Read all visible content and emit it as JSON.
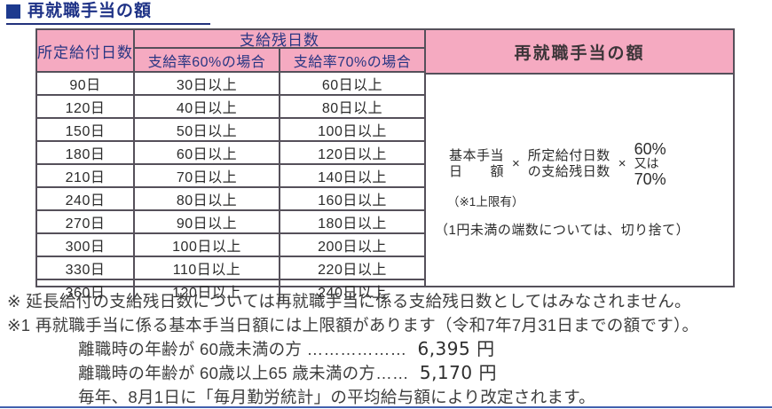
{
  "title": {
    "text": "再就職手当の額"
  },
  "table": {
    "header": {
      "col_prescribed_days": "所定給付日数",
      "col_remaining_days": "支給残日数",
      "col_rate60": "支給率60%の場合",
      "col_rate70": "支給率70%の場合",
      "col_allowance": "再就職手当の額"
    },
    "rows": [
      {
        "days": "90日",
        "r60": "30日以上",
        "r70": "60日以上"
      },
      {
        "days": "120日",
        "r60": "40日以上",
        "r70": "80日以上"
      },
      {
        "days": "150日",
        "r60": "50日以上",
        "r70": "100日以上"
      },
      {
        "days": "180日",
        "r60": "60日以上",
        "r70": "120日以上"
      },
      {
        "days": "210日",
        "r60": "70日以上",
        "r70": "140日以上"
      },
      {
        "days": "240日",
        "r60": "80日以上",
        "r70": "160日以上"
      },
      {
        "days": "270日",
        "r60": "90日以上",
        "r70": "180日以上"
      },
      {
        "days": "300日",
        "r60": "100日以上",
        "r70": "200日以上"
      },
      {
        "days": "330日",
        "r60": "110日以上",
        "r70": "220日以上"
      },
      {
        "days": "360日",
        "r60": "120日以上",
        "r70": "240日以上"
      }
    ],
    "formula": {
      "term1_line1": "基本手当",
      "term1_line2_left": "日",
      "term1_line2_right": "額",
      "multiply": "×",
      "term2_line1": "所定給付日数",
      "term2_line2": "の支給残日数",
      "term3_line1": "60%",
      "term3_line2": "又は",
      "term3_line3": "70%",
      "cap_note": "（※1上限有）",
      "rounding_note": "（1円未満の端数については、切り捨て）"
    }
  },
  "notes": {
    "note1": "※ 延長給付の支給残日数については再就職手当に係る支給残日数としてはみなされません。",
    "note2": "※1 再就職手当に係る基本手当日額には上限額があります（令和7年7月31日までの額です）。",
    "age_under60_label": "離職時の年齢が 60歳未満の方 ………………",
    "age_under60_amount": "6,395 円",
    "age_60to65_label": "離職時の年齢が 60歳以上65 歳未満の方……",
    "age_60to65_amount": "5,170 円",
    "revision_note": "毎年、8月1日に「毎月勤労統計」の平均給与額により改定されます。"
  },
  "colors": {
    "header_pink": "#f5aac1",
    "title_navy": "#1e3286",
    "header_text_navy": "#293683",
    "border_dark": "#55505a",
    "bottom_rule_blue": "#4160ae"
  }
}
